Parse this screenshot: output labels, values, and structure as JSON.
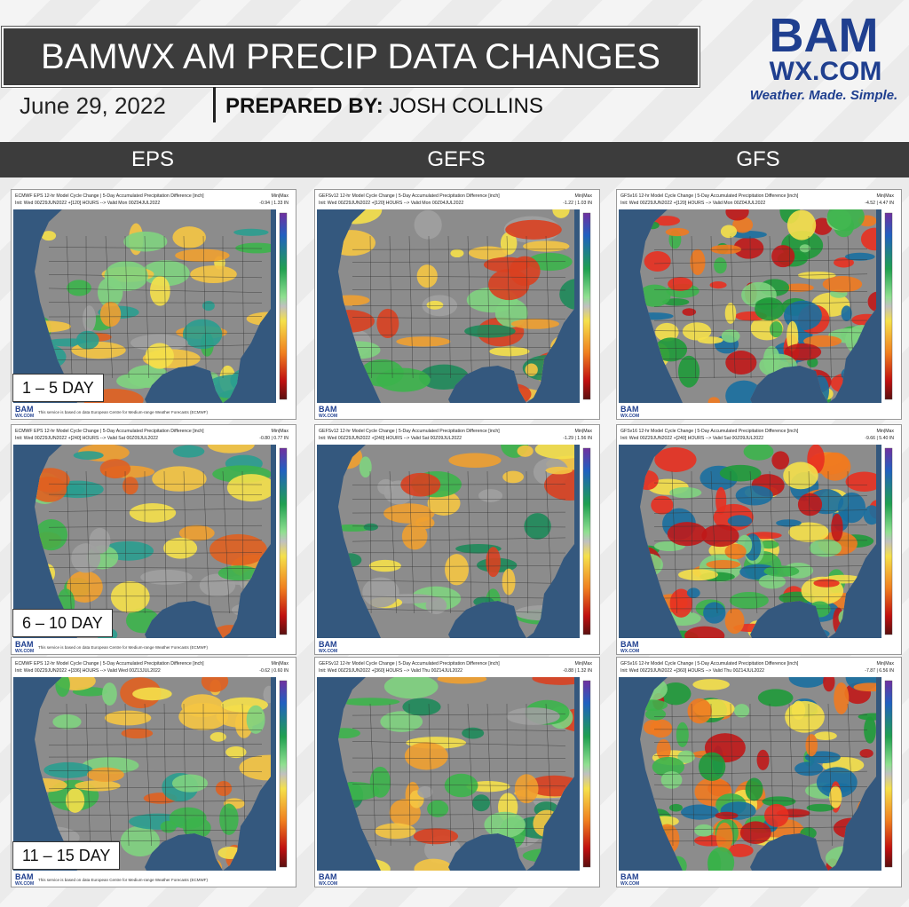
{
  "header": {
    "title": "BAMWX AM PRECIP DATA CHANGES",
    "date": "June 29, 2022",
    "prepared_label": "PREPARED BY:",
    "prepared_name": "JOSH COLLINS"
  },
  "logo": {
    "name": "BAM",
    "domain": "WX.COM",
    "tagline": "Weather. Made. Simple."
  },
  "columns": [
    "EPS",
    "GEFS",
    "GFS"
  ],
  "rows": [
    "1 – 5 DAY",
    "6 – 10 DAY",
    "11 – 15 DAY"
  ],
  "panels": [
    [
      {
        "title": "ECMWF EPS 12-hr Model Cycle Change | 5-Day Accumulated Precipitation Difference [inch]",
        "init": "Init: Wed 00Z29JUN2022 +[120] HOURS --> Valid Mon 00Z04JUL2022",
        "minmax_label": "Min|Max",
        "minmax": "-0.94 | 1.33 IN",
        "note": "This service is based on data European Centre for Medium-range Weather Forecasts (ECMWF)"
      },
      {
        "title": "GEFSv12 12-hr Model Cycle Change | 5-Day Accumulated Precipitation Difference [inch]",
        "init": "Init: Wed 00Z29JUN2022 +[120] HOURS --> Valid Mon 00Z04JUL2022",
        "minmax_label": "Min|Max",
        "minmax": "-1.22 | 1.03 IN"
      },
      {
        "title": "GFSv16 12-hr Model Cycle Change | 5-Day Accumulated Precipitation Difference [inch]",
        "init": "Init: Wed 00Z29JUN2022 +[120] HOURS --> Valid Mon 00Z04JUL2022",
        "minmax_label": "Min|Max",
        "minmax": "-4.52 | 4.47 IN"
      }
    ],
    [
      {
        "title": "ECMWF EPS 12-hr Model Cycle Change | 5-Day Accumulated Precipitation Difference [inch]",
        "init": "Init: Wed 00Z29JUN2022 +[240] HOURS --> Valid Sat 00Z09JUL2022",
        "minmax_label": "Min|Max",
        "minmax": "-0.80 | 0.77 IN",
        "note": "This service is based on data European Centre for Medium-range Weather Forecasts (ECMWF)"
      },
      {
        "title": "GEFSv12 12-hr Model Cycle Change | 5-Day Accumulated Precipitation Difference [inch]",
        "init": "Init: Wed 00Z29JUN2022 +[240] HOURS --> Valid Sat 00Z09JUL2022",
        "minmax_label": "Min|Max",
        "minmax": "-1.29 | 1.56 IN"
      },
      {
        "title": "GFSv16 12-hr Model Cycle Change | 5-Day Accumulated Precipitation Difference [inch]",
        "init": "Init: Wed 00Z29JUN2022 +[240] HOURS --> Valid Sat 00Z09JUL2022",
        "minmax_label": "Min|Max",
        "minmax": "-9.66 | 5.40 IN"
      }
    ],
    [
      {
        "title": "ECMWF EPS 12-hr Model Cycle Change | 5-Day Accumulated Precipitation Difference [inch]",
        "init": "Init: Wed 00Z29JUN2022 +[336] HOURS --> Valid Wed 00Z13JUL2022",
        "minmax_label": "Min|Max",
        "minmax": "-0.62 | 0.60 IN",
        "note": "This service is based on data European Centre for Medium-range Weather Forecasts (ECMWF)"
      },
      {
        "title": "GEFSv12 12-hr Model Cycle Change | 5-Day Accumulated Precipitation Difference [inch]",
        "init": "Init: Wed 00Z29JUN2022 +[360] HOURS --> Valid Thu 00Z14JUL2022",
        "minmax_label": "Min|Max",
        "minmax": "-0.88 | 1.32 IN"
      },
      {
        "title": "GFSv16 12-hr Model Cycle Change | 5-Day Accumulated Precipitation Difference [inch]",
        "init": "Init: Wed 00Z29JUN2022 +[360] HOURS --> Valid Thu 00Z14JUL2022",
        "minmax_label": "Min|Max",
        "minmax": "-7.87 | 6.56 IN"
      }
    ]
  ]
}
